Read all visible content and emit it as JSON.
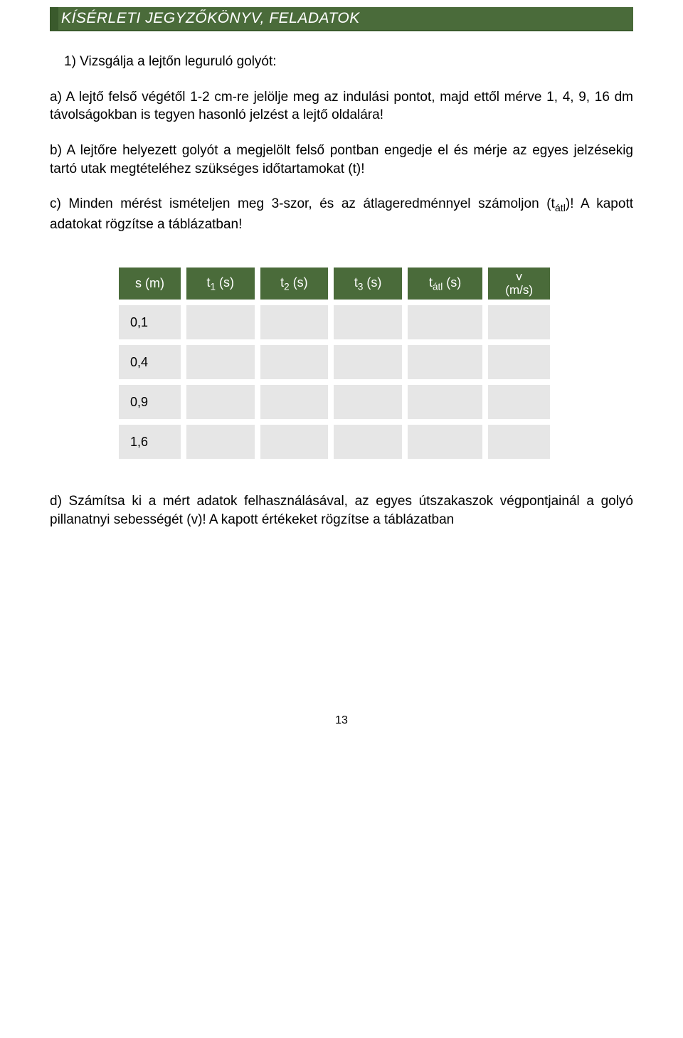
{
  "header": {
    "title": "KÍSÉRLETI JEGYZŐKÖNYV, FELADATOK"
  },
  "task": {
    "number_line": "1)  Vizsgálja a lejtőn leguruló golyót:",
    "a": "a)    A lejtő felső végétől 1-2 cm-re jelölje meg az indulási pontot, majd ettől mérve 1, 4, 9, 16 dm távolságokban is tegyen hasonló jelzést a lejtő oldalára!",
    "b": "b)    A lejtőre helyezett golyót a megjelölt felső pontban engedje el és mérje az egyes jelzésekig tartó utak megtételéhez szükséges időtartamokat (t)!",
    "c_part1": "c)    Minden mérést ismételjen meg 3-szor, és az átlageredménnyel számoljon (t",
    "c_sub": "átl",
    "c_part2": ")! A kapott adatokat rögzítse a táblázatban!",
    "d": "d)   Számítsa ki a mért adatok felhasználásával, az egyes útszakaszok végpontjainál a golyó pillanatnyi sebességét (v)! A kapott értékeket rögzítse a táblázatban"
  },
  "table": {
    "headers": {
      "c0": "s (m)",
      "c1_pre": "t",
      "c1_sub": "1",
      "c1_post": " (s)",
      "c2_pre": "t",
      "c2_sub": "2",
      "c2_post": " (s)",
      "c3_pre": "t",
      "c3_sub": "3",
      "c3_post": " (s)",
      "c4_pre": "t",
      "c4_sub": "átl",
      "c4_post": " (s)",
      "c5_line1": "v",
      "c5_line2": "(m/s)"
    },
    "rows": [
      {
        "s": "0,1",
        "t1": "",
        "t2": "",
        "t3": "",
        "tatl": "",
        "v": ""
      },
      {
        "s": "0,4",
        "t1": "",
        "t2": "",
        "t3": "",
        "tatl": "",
        "v": ""
      },
      {
        "s": "0,9",
        "t1": "",
        "t2": "",
        "t3": "",
        "tatl": "",
        "v": ""
      },
      {
        "s": "1,6",
        "t1": "",
        "t2": "",
        "t3": "",
        "tatl": "",
        "v": ""
      }
    ],
    "col_widths": [
      "90px",
      "100px",
      "100px",
      "100px",
      "110px",
      "90px"
    ],
    "header_bg": "#4a6b3a",
    "header_fg": "#ffffff",
    "cell_bg": "#e6e6e6"
  },
  "page_number": "13"
}
